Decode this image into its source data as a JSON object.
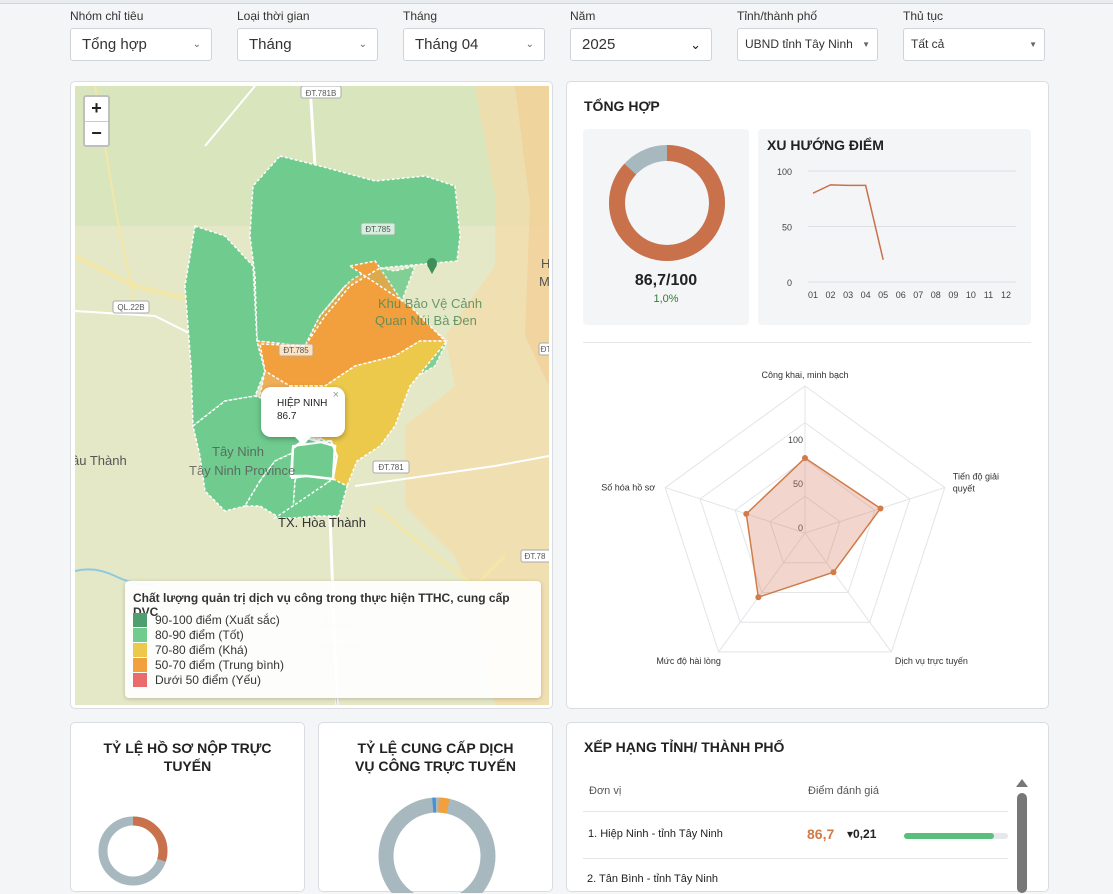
{
  "filters": {
    "group": {
      "label": "Nhóm chỉ tiêu",
      "value": "Tổng hợp"
    },
    "period_type": {
      "label": "Loại thời gian",
      "value": "Tháng"
    },
    "month": {
      "label": "Tháng",
      "value": "Tháng 04"
    },
    "year": {
      "label": "Năm",
      "value": "2025"
    },
    "province": {
      "label": "Tỉnh/thành phố",
      "value": "UBND tỉnh Tây Ninh"
    },
    "procedure": {
      "label": "Thủ tục",
      "value": "Tất cả"
    }
  },
  "map": {
    "zoom_in": "+",
    "zoom_out": "−",
    "labels": {
      "road_dt781b": "ĐT.781B",
      "road_dt785": "ĐT.785",
      "road_dt785b": "ĐT.785",
      "road_ql22b": "QL.22B",
      "road_dt781": "ĐT.781",
      "road_dt78": "ĐT.78",
      "road_dt_r": "ĐT",
      "reserve_1": "Khu Bảo Vệ Cảnh",
      "reserve_2": "Quan Núi Bà Đen",
      "tay_ninh_1": "Tây Ninh",
      "tay_ninh_2": "Tây Ninh Province",
      "hoa_thanh": "TX. Hòa Thành",
      "chau_thanh": "âu Thành",
      "right_1": "H",
      "right_2": "M"
    },
    "popup": {
      "name": "HIỆP NINH",
      "value": "86.7",
      "close": "×"
    },
    "legend": {
      "title": "Chất lượng quản trị dịch vụ công trong thực hiện TTHC, cung cấp DVC",
      "items": [
        {
          "label": "90-100 điểm (Xuất sắc)",
          "color": "#4f9e6f"
        },
        {
          "label": "80-90 điểm (Tốt)",
          "color": "#6fcc8e"
        },
        {
          "label": "70-80 điểm (Khá)",
          "color": "#ecc94b"
        },
        {
          "label": "50-70 điểm (Trung bình)",
          "color": "#f2a03d"
        },
        {
          "label": "Dưới 50 điểm (Yếu)",
          "color": "#ea6b6b"
        }
      ]
    }
  },
  "summary": {
    "title": "TỔNG HỢP",
    "score_text": "86,7/100",
    "change_text": "1,0%",
    "score_value": 86.7,
    "colors": {
      "main": "#c9714a",
      "rest": "#a8b8bf"
    },
    "trend": {
      "title": "XU HƯỚNG ĐIỂM",
      "y_ticks": [
        "100",
        "50",
        "0"
      ],
      "months": [
        "01",
        "02",
        "03",
        "04",
        "05",
        "06",
        "07",
        "08",
        "09",
        "10",
        "11",
        "12"
      ],
      "values": [
        80,
        87.5,
        87,
        87,
        20,
        null,
        null,
        null,
        null,
        null,
        null,
        null
      ],
      "ylim": [
        0,
        100
      ]
    },
    "radar": {
      "axes": [
        "Công khai, minh bạch",
        "Tiến độ giải quyết",
        "Dịch vụ trực tuyến",
        "Mức độ hài lòng",
        "Số hóa hồ sơ"
      ],
      "values": [
        85,
        90,
        55,
        90,
        70
      ],
      "ticks": [
        "100",
        "50",
        "0"
      ],
      "max": 100
    }
  },
  "online_ratio": {
    "title": "TỶ LỆ HỒ SƠ NỘP TRỰC TUYẾN",
    "value": 30
  },
  "online_service": {
    "title": "TỶ LỆ CUNG CẤP DỊCH VỤ CÔNG TRỰC TUYẾN",
    "value": 3,
    "value2": 1
  },
  "ranking": {
    "title": "XẾP HẠNG TỈNH/ THÀNH PHỐ",
    "col_unit": "Đơn vị",
    "col_score": "Điểm đánh giá",
    "rows": [
      {
        "name": "1. Hiệp Ninh - tỉnh Tây Ninh",
        "score": "86,7",
        "delta": "▾0,21",
        "bar": 0.87
      }
    ],
    "next_row": "2. Tân Bình - tỉnh Tây Ninh"
  }
}
